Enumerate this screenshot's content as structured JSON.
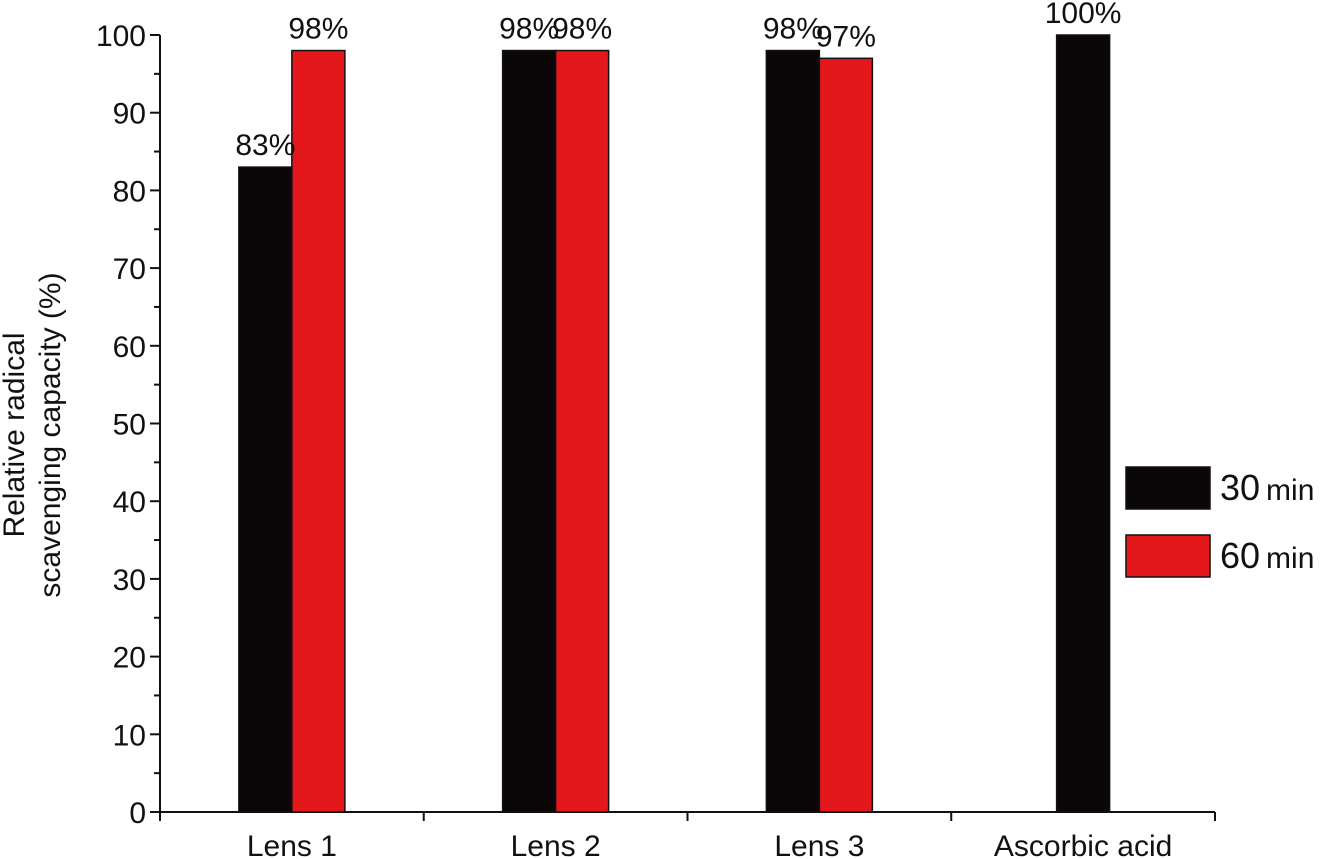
{
  "chart_data": {
    "type": "bar",
    "categories": [
      "Lens 1",
      "Lens 2",
      "Lens 3",
      "Ascorbic acid"
    ],
    "series": [
      {
        "name": "30 min",
        "legend_value": "30",
        "legend_unit": "min",
        "color": "#0b0709",
        "values": [
          83,
          98,
          98,
          100
        ],
        "labels": [
          "83%",
          "98%",
          "98%",
          "100%"
        ]
      },
      {
        "name": "60 min",
        "legend_value": "60",
        "legend_unit": "min",
        "color": "#e4171c",
        "values": [
          98,
          98,
          97,
          null
        ],
        "labels": [
          "98%",
          "98%",
          "97%",
          ""
        ]
      }
    ],
    "ylabel_line1": "Relative radical",
    "ylabel_line2": "scavenging capacity (%)",
    "xlabel": "",
    "ylim": [
      0,
      100
    ],
    "yticks": [
      0,
      10,
      20,
      30,
      40,
      50,
      60,
      70,
      80,
      90,
      100
    ],
    "grid": false,
    "legend_position": "right"
  }
}
